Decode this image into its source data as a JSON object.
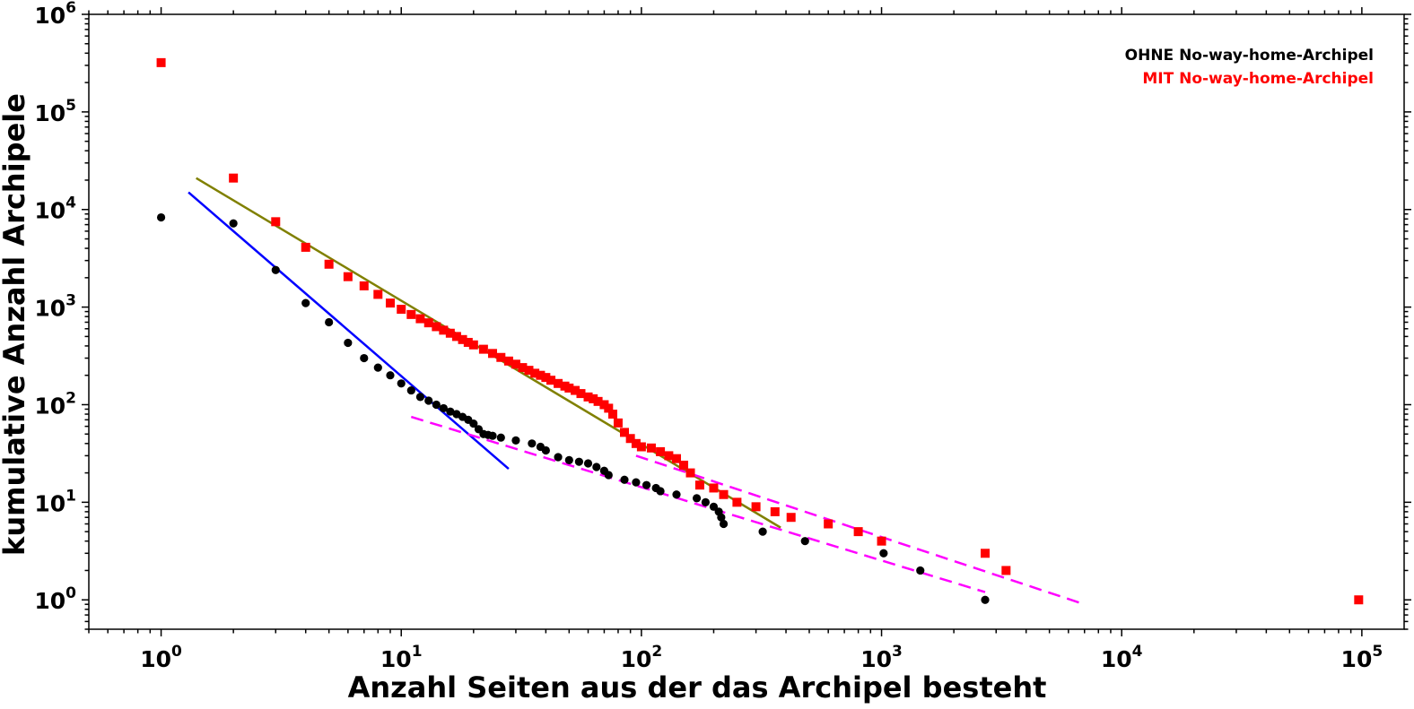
{
  "chart_data": {
    "type": "scatter",
    "xscale": "log",
    "yscale": "log",
    "xlim": [
      0.5,
      150000
    ],
    "ylim": [
      0.5,
      1000000
    ],
    "xlabel": "Anzahl Seiten aus der das Archipel besteht",
    "ylabel": "kumulative Anzahl Archipele",
    "x_ticks": [
      {
        "value": 1,
        "mantissa": "10",
        "exp": "0"
      },
      {
        "value": 10,
        "mantissa": "10",
        "exp": "1"
      },
      {
        "value": 100,
        "mantissa": "10",
        "exp": "2"
      },
      {
        "value": 1000,
        "mantissa": "10",
        "exp": "3"
      },
      {
        "value": 10000,
        "mantissa": "10",
        "exp": "4"
      },
      {
        "value": 100000,
        "mantissa": "10",
        "exp": "5"
      }
    ],
    "y_ticks": [
      {
        "value": 1,
        "mantissa": "10",
        "exp": "0"
      },
      {
        "value": 10,
        "mantissa": "10",
        "exp": "1"
      },
      {
        "value": 100,
        "mantissa": "10",
        "exp": "2"
      },
      {
        "value": 1000,
        "mantissa": "10",
        "exp": "3"
      },
      {
        "value": 10000,
        "mantissa": "10",
        "exp": "4"
      },
      {
        "value": 100000,
        "mantissa": "10",
        "exp": "5"
      },
      {
        "value": 1000000,
        "mantissa": "10",
        "exp": "6"
      }
    ],
    "legend_position": "top-right",
    "series": [
      {
        "name": "OHNE No-way-home-Archipel",
        "color": "#000000",
        "marker": "circle",
        "points": [
          [
            1,
            8300
          ],
          [
            2,
            7200
          ],
          [
            3,
            2400
          ],
          [
            4,
            1100
          ],
          [
            5,
            700
          ],
          [
            6,
            430
          ],
          [
            7,
            300
          ],
          [
            8,
            240
          ],
          [
            9,
            200
          ],
          [
            10,
            165
          ],
          [
            11,
            140
          ],
          [
            12,
            120
          ],
          [
            13,
            110
          ],
          [
            14,
            100
          ],
          [
            15,
            92
          ],
          [
            16,
            85
          ],
          [
            17,
            80
          ],
          [
            18,
            75
          ],
          [
            19,
            70
          ],
          [
            20,
            64
          ],
          [
            21,
            56
          ],
          [
            22,
            50
          ],
          [
            23,
            49
          ],
          [
            24,
            48
          ],
          [
            26,
            46
          ],
          [
            30,
            43
          ],
          [
            35,
            40
          ],
          [
            38,
            37
          ],
          [
            40,
            34
          ],
          [
            45,
            29
          ],
          [
            50,
            27
          ],
          [
            55,
            26
          ],
          [
            60,
            25
          ],
          [
            65,
            23
          ],
          [
            70,
            21
          ],
          [
            73,
            19
          ],
          [
            85,
            17
          ],
          [
            95,
            16
          ],
          [
            105,
            15
          ],
          [
            115,
            14
          ],
          [
            120,
            13
          ],
          [
            140,
            12
          ],
          [
            170,
            11
          ],
          [
            185,
            10
          ],
          [
            200,
            9
          ],
          [
            210,
            8
          ],
          [
            215,
            7
          ],
          [
            220,
            6
          ],
          [
            320,
            5
          ],
          [
            480,
            4
          ],
          [
            1020,
            3
          ],
          [
            1450,
            2
          ],
          [
            2700,
            1
          ]
        ]
      },
      {
        "name": "MIT No-way-home-Archipel",
        "color": "#ff0000",
        "marker": "square",
        "points": [
          [
            1,
            320000
          ],
          [
            2,
            21000
          ],
          [
            3,
            7500
          ],
          [
            4,
            4100
          ],
          [
            5,
            2750
          ],
          [
            6,
            2050
          ],
          [
            7,
            1650
          ],
          [
            8,
            1350
          ],
          [
            9,
            1100
          ],
          [
            10,
            950
          ],
          [
            11,
            840
          ],
          [
            12,
            760
          ],
          [
            13,
            690
          ],
          [
            14,
            630
          ],
          [
            15,
            580
          ],
          [
            16,
            540
          ],
          [
            17,
            500
          ],
          [
            18,
            465
          ],
          [
            19,
            435
          ],
          [
            20,
            410
          ],
          [
            22,
            370
          ],
          [
            24,
            335
          ],
          [
            26,
            305
          ],
          [
            28,
            280
          ],
          [
            30,
            260
          ],
          [
            32,
            240
          ],
          [
            34,
            225
          ],
          [
            36,
            210
          ],
          [
            38,
            200
          ],
          [
            40,
            190
          ],
          [
            42,
            178
          ],
          [
            45,
            165
          ],
          [
            48,
            155
          ],
          [
            50,
            148
          ],
          [
            53,
            140
          ],
          [
            56,
            130
          ],
          [
            60,
            120
          ],
          [
            63,
            115
          ],
          [
            66,
            108
          ],
          [
            70,
            100
          ],
          [
            73,
            92
          ],
          [
            76,
            80
          ],
          [
            80,
            65
          ],
          [
            85,
            52
          ],
          [
            90,
            45
          ],
          [
            95,
            40
          ],
          [
            100,
            37
          ],
          [
            110,
            36
          ],
          [
            120,
            33
          ],
          [
            130,
            30
          ],
          [
            140,
            28
          ],
          [
            150,
            24
          ],
          [
            160,
            20
          ],
          [
            175,
            15
          ],
          [
            200,
            14
          ],
          [
            220,
            12
          ],
          [
            250,
            10
          ],
          [
            300,
            9
          ],
          [
            360,
            8
          ],
          [
            420,
            7
          ],
          [
            600,
            6
          ],
          [
            800,
            5
          ],
          [
            1000,
            4
          ],
          [
            2700,
            3
          ],
          [
            3300,
            2
          ],
          [
            97000,
            1
          ]
        ]
      }
    ],
    "fit_lines": [
      {
        "color": "#0000ff",
        "style": "solid",
        "from": [
          1.3,
          15000
        ],
        "to": [
          28,
          22
        ]
      },
      {
        "color": "#808000",
        "style": "solid",
        "from": [
          1.4,
          21000
        ],
        "to": [
          380,
          5.5
        ]
      },
      {
        "color": "#ff00ff",
        "style": "dashed",
        "from": [
          11,
          75
        ],
        "to": [
          2700,
          1.2
        ]
      },
      {
        "color": "#ff00ff",
        "style": "dashed",
        "from": [
          95,
          30
        ],
        "to": [
          7000,
          0.9
        ]
      }
    ]
  }
}
